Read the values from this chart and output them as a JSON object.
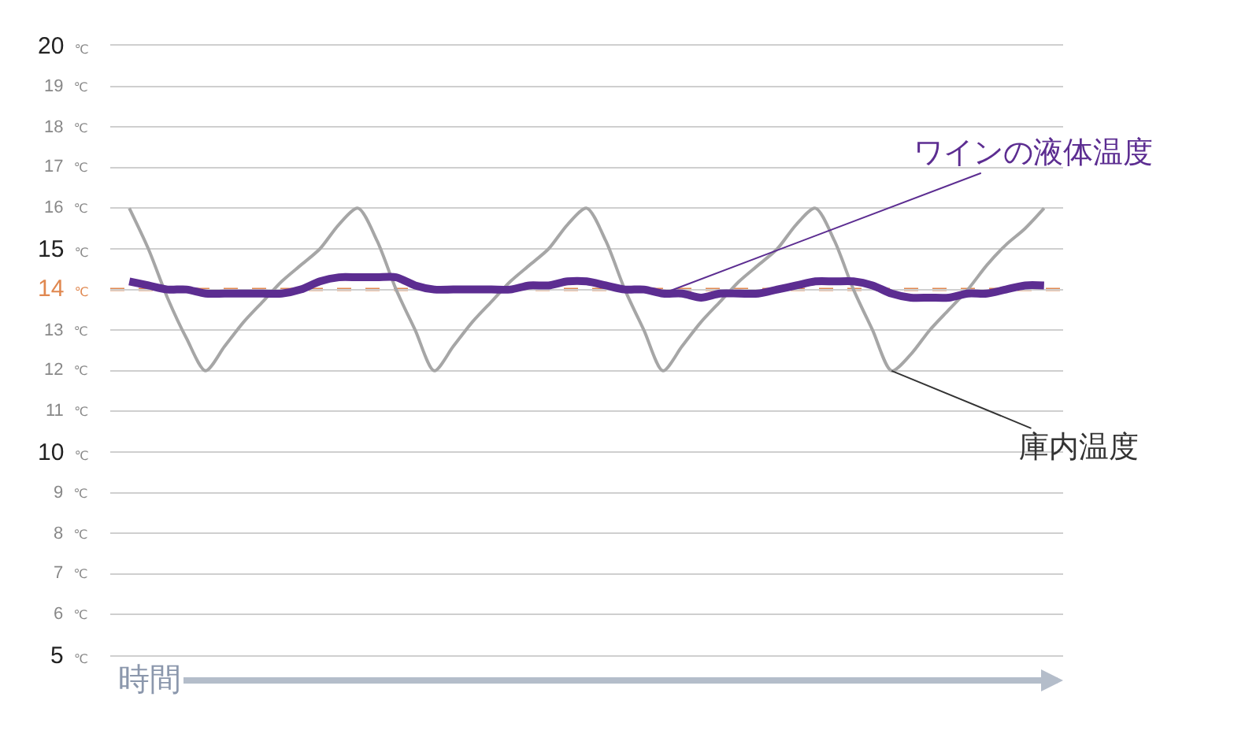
{
  "chart_data": {
    "type": "line",
    "xlabel": "時間",
    "categories": [
      null,
      null,
      null,
      null,
      null,
      null,
      null,
      null,
      null,
      null,
      null,
      null,
      null,
      null,
      null,
      null,
      null,
      null,
      null,
      null,
      null,
      null,
      null,
      null,
      null,
      null,
      null,
      null,
      null,
      null,
      null,
      null,
      null,
      null,
      null,
      null,
      null,
      null,
      null,
      null,
      null,
      null,
      null,
      null,
      null,
      null,
      null,
      null,
      null
    ],
    "series": [
      {
        "name": "庫内温度",
        "color": "#a6a6a6",
        "values": [
          16.0,
          15.0,
          13.8,
          12.8,
          12.0,
          12.6,
          13.2,
          13.7,
          14.2,
          14.6,
          15.0,
          15.6,
          16.0,
          15.2,
          14.0,
          13.0,
          12.0,
          12.6,
          13.2,
          13.7,
          14.2,
          14.6,
          15.0,
          15.6,
          16.0,
          15.2,
          14.0,
          13.0,
          12.0,
          12.6,
          13.2,
          13.7,
          14.2,
          14.6,
          15.0,
          15.6,
          16.0,
          15.2,
          14.0,
          13.0,
          12.0,
          12.4,
          13.0,
          13.5,
          14.0,
          14.6,
          15.1,
          15.5,
          16.0
        ]
      },
      {
        "name": "ワインの液体温度",
        "color": "#5c2d91",
        "values": [
          14.2,
          14.1,
          14.0,
          14.0,
          13.9,
          13.9,
          13.9,
          13.9,
          13.9,
          14.0,
          14.2,
          14.3,
          14.3,
          14.3,
          14.3,
          14.1,
          14.0,
          14.0,
          14.0,
          14.0,
          14.0,
          14.1,
          14.1,
          14.2,
          14.2,
          14.1,
          14.0,
          14.0,
          13.9,
          13.9,
          13.8,
          13.9,
          13.9,
          13.9,
          14.0,
          14.1,
          14.2,
          14.2,
          14.2,
          14.1,
          13.9,
          13.8,
          13.8,
          13.8,
          13.9,
          13.9,
          14.0,
          14.1,
          14.1
        ]
      }
    ],
    "ylim": [
      5,
      20
    ],
    "yticks": [
      {
        "value": 5,
        "label": "5 ℃"
      },
      {
        "value": 6,
        "label": "6 ℃"
      },
      {
        "value": 7,
        "label": "7 ℃"
      },
      {
        "value": 8,
        "label": "8 ℃"
      },
      {
        "value": 9,
        "label": "9 ℃"
      },
      {
        "value": 10,
        "label": "10 ℃"
      },
      {
        "value": 11,
        "label": "11 ℃"
      },
      {
        "value": 12,
        "label": "12 ℃"
      },
      {
        "value": 13,
        "label": "13 ℃"
      },
      {
        "value": 14,
        "label": "14 ℃"
      },
      {
        "value": 15,
        "label": "15 ℃"
      },
      {
        "value": 16,
        "label": "16 ℃"
      },
      {
        "value": 17,
        "label": "17 ℃"
      },
      {
        "value": 18,
        "label": "18 ℃"
      },
      {
        "value": 19,
        "label": "19 ℃"
      },
      {
        "value": 20,
        "label": "20 ℃"
      }
    ],
    "ref_lines": [
      {
        "axis": "y",
        "value": 14,
        "color": "#e08850",
        "line_style": "dashed"
      }
    ],
    "grid": "y",
    "legend": false,
    "tick_labels": "y"
  }
}
